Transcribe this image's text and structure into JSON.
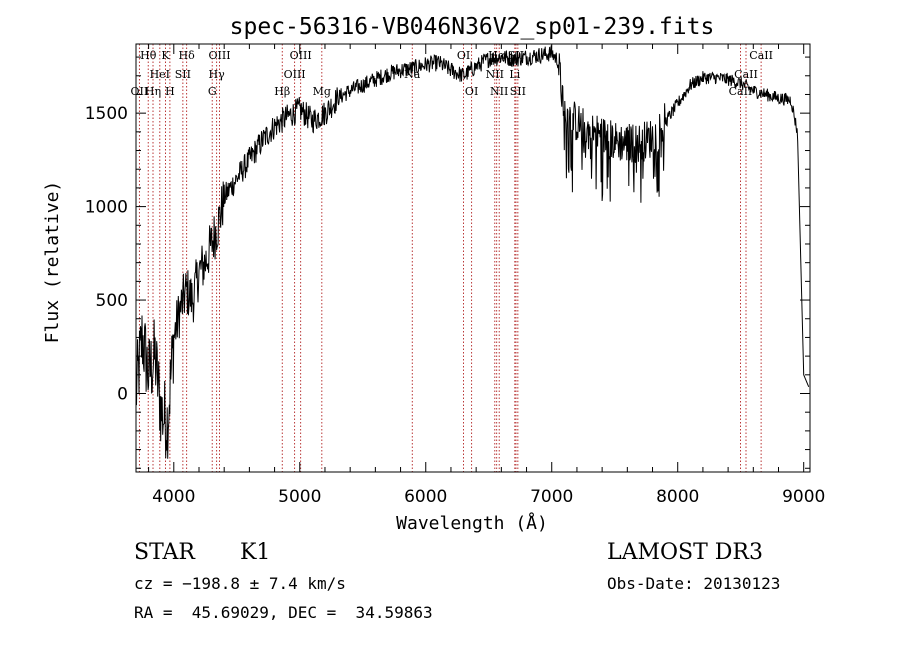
{
  "chart_data": {
    "type": "line",
    "title": "spec-56316-VB046N36V2_sp01-239.fits",
    "xlabel": "Wavelength (Å)",
    "ylabel": "Flux (relative)",
    "xlim": [
      3700,
      9050
    ],
    "ylim": [
      -420,
      1870
    ],
    "xticks": [
      4000,
      5000,
      6000,
      7000,
      8000,
      9000
    ],
    "xtick_labels": [
      "4000",
      "5000",
      "6000",
      "7000",
      "8000",
      "9000"
    ],
    "yticks": [
      0,
      500,
      1000,
      1500
    ],
    "ytick_labels": [
      "0",
      "500",
      "1000",
      "1500"
    ],
    "spectrum_anchors": {
      "x": [
        3700,
        3750,
        3800,
        3850,
        3900,
        3950,
        4000,
        4050,
        4100,
        4150,
        4200,
        4250,
        4300,
        4350,
        4400,
        4500,
        4600,
        4700,
        4800,
        4900,
        5000,
        5100,
        5200,
        5300,
        5400,
        5500,
        5600,
        5700,
        5800,
        5900,
        6000,
        6100,
        6200,
        6300,
        6400,
        6500,
        6600,
        6700,
        6800,
        6900,
        7000,
        7050,
        7100,
        7200,
        7300,
        7400,
        7500,
        7600,
        7700,
        7800,
        7900,
        8000,
        8100,
        8200,
        8300,
        8400,
        8500,
        8600,
        8700,
        8800,
        8900,
        8950,
        9000,
        9050
      ],
      "y": [
        0,
        300,
        100,
        200,
        -100,
        -150,
        300,
        450,
        550,
        500,
        650,
        700,
        800,
        900,
        1050,
        1150,
        1250,
        1350,
        1430,
        1480,
        1520,
        1460,
        1500,
        1580,
        1620,
        1650,
        1680,
        1710,
        1730,
        1740,
        1760,
        1770,
        1730,
        1700,
        1750,
        1790,
        1800,
        1790,
        1800,
        1810,
        1820,
        1780,
        1500,
        1450,
        1400,
        1380,
        1350,
        1340,
        1340,
        1370,
        1450,
        1550,
        1650,
        1690,
        1690,
        1680,
        1660,
        1620,
        1600,
        1580,
        1570,
        1400,
        100,
        20
      ]
    },
    "absorption_lines": [
      {
        "x": 3727,
        "labels": [
          "OII"
        ],
        "row": 2
      },
      {
        "x": 3797,
        "labels": [
          "Hθ"
        ],
        "row": 0
      },
      {
        "x": 3835,
        "labels": [
          "Hη"
        ],
        "row": 2
      },
      {
        "x": 3889,
        "labels": [
          "HeI"
        ],
        "row": 1
      },
      {
        "x": 3934,
        "labels": [
          "K"
        ],
        "row": 0
      },
      {
        "x": 3969,
        "labels": [
          "H"
        ],
        "row": 2
      },
      {
        "x": 4072,
        "labels": [
          "SII"
        ],
        "row": 1
      },
      {
        "x": 4102,
        "labels": [
          "Hδ"
        ],
        "row": 0
      },
      {
        "x": 4305,
        "labels": [
          "G"
        ],
        "row": 2
      },
      {
        "x": 4340,
        "labels": [
          "Hγ"
        ],
        "row": 1
      },
      {
        "x": 4363,
        "labels": [
          "OIII"
        ],
        "row": 0
      },
      {
        "x": 4861,
        "labels": [
          "Hβ"
        ],
        "row": 2
      },
      {
        "x": 4959,
        "labels": [
          "OIII"
        ],
        "row": 1
      },
      {
        "x": 5007,
        "labels": [
          "OIII"
        ],
        "row": 0
      },
      {
        "x": 5175,
        "labels": [
          "Mg"
        ],
        "row": 2
      },
      {
        "x": 5893,
        "labels": [
          "Na"
        ],
        "row": 1
      },
      {
        "x": 6300,
        "labels": [
          "OI"
        ],
        "row": 0
      },
      {
        "x": 6364,
        "labels": [
          "OI"
        ],
        "row": 2
      },
      {
        "x": 6548,
        "labels": [
          "NII"
        ],
        "row": 1
      },
      {
        "x": 6563,
        "labels": [
          "Hα"
        ],
        "row": 0
      },
      {
        "x": 6583,
        "labels": [
          "NII"
        ],
        "row": 2
      },
      {
        "x": 6707,
        "labels": [
          "Li"
        ],
        "row": 1
      },
      {
        "x": 6716,
        "labels": [
          "SII"
        ],
        "row": 0
      },
      {
        "x": 6731,
        "labels": [
          "SII"
        ],
        "row": 2
      },
      {
        "x": 8498,
        "labels": [
          "CaII"
        ],
        "row": 2
      },
      {
        "x": 8542,
        "labels": [
          "CaII"
        ],
        "row": 1
      },
      {
        "x": 8662,
        "labels": [
          "CaII"
        ],
        "row": 0
      }
    ]
  },
  "footer": {
    "type_label": "STAR",
    "subclass": "K1",
    "survey": "LAMOST DR3",
    "cz": "cz = −198.8 ± 7.4 km/s",
    "obs_date": "Obs-Date: 20130123",
    "coords": "RA =  45.69029, DEC =  34.59863"
  }
}
